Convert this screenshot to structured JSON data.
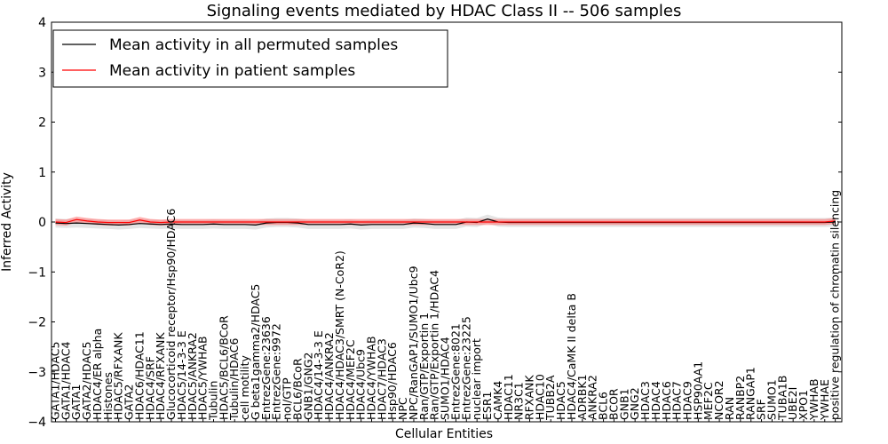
{
  "chart_data": {
    "type": "line",
    "title": "Signaling events mediated by HDAC Class II -- 506 samples",
    "xlabel": "Cellular Entities",
    "ylabel": "Inferred Activity",
    "ylim": [
      -4,
      4
    ],
    "yticks": [
      -4,
      -3,
      -2,
      -1,
      0,
      1,
      2,
      3,
      4
    ],
    "ytick_labels": [
      "−4",
      "−3",
      "−2",
      "−1",
      "0",
      "1",
      "2",
      "3",
      "4"
    ],
    "legend": {
      "position": "top-left",
      "entries": [
        {
          "label": "Mean activity in all permuted samples",
          "color": "#000000"
        },
        {
          "label": "Mean activity in patient samples",
          "color": "#ff0000"
        }
      ]
    },
    "categories": [
      "GATA1/HDAC5",
      "GATA1/HDAC4",
      "GATA1",
      "GATA2/HDAC5",
      "HDAC4/ER alpha",
      "Histones",
      "HDAC5/RFXANK",
      "GATA2",
      "HDAC6/HDAC11",
      "HDAC4/SRF",
      "HDAC4/RFXANK",
      "Glucocorticoid receptor/Hsp90/HDAC6",
      "HDAC5/14-3-3 E",
      "HDAC5/ANKRA2",
      "HDAC5/YWHAB",
      "Tubulin",
      "HDAC5/BCL6/BCoR",
      "Tubulin/HDAC6",
      "cell motility",
      "G beta1gamma2/HDAC5",
      "EntrezGene:23636",
      "EntrezGene:9972",
      "nol/GTP",
      "BCL6/BCoR",
      "GNB1/GNG2",
      "HDAC4/14-3-3 E",
      "HDAC4/ANKRA2",
      "HDAC4/HDAC3/SMRT (N-CoR2)",
      "HDAC4/MEF2C",
      "HDAC4/Ubc9",
      "HDAC4/YWHAB",
      "HDAC7/HDAC3",
      "Hsp90/HDAC6",
      "NPC",
      "NPC/RanGAP1/SUMO1/Ubc9",
      "Ran/GTP/Exportin 1",
      "Ran/GTP/Exportin 1/HDAC4",
      "SUMO1/HDAC4",
      "EntrezGene:8021",
      "EntrezGene:23225",
      "nuclear import",
      "ESR1",
      "CAMK4",
      "HDAC11",
      "NR3C1",
      "RFXANK",
      "HDAC10",
      "TUBB2A",
      "HDAC5",
      "HDAC4/CaMK II delta B",
      "ADRBK1",
      "ANKRA2",
      "BCL6",
      "BCOR",
      "GNB1",
      "GNG2",
      "HDAC3",
      "HDAC4",
      "HDAC6",
      "HDAC7",
      "HDAC9",
      "HSP90AA1",
      "MEF2C",
      "NCOR2",
      "RAN",
      "RANBP2",
      "RANGAP1",
      "SRF",
      "SUMO1",
      "TUBA1B",
      "UBE2I",
      "XPO1",
      "YWHAB",
      "YWHAE",
      "positive regulation of chromatin silencing"
    ],
    "series": [
      {
        "name": "Mean activity in all permuted samples",
        "color": "#000000",
        "values": [
          -0.02,
          -0.03,
          -0.02,
          -0.03,
          -0.04,
          -0.05,
          -0.06,
          -0.05,
          -0.03,
          -0.04,
          -0.05,
          -0.04,
          -0.05,
          -0.05,
          -0.05,
          -0.04,
          -0.05,
          -0.05,
          -0.05,
          -0.06,
          -0.02,
          -0.01,
          -0.01,
          -0.02,
          -0.05,
          -0.05,
          -0.05,
          -0.05,
          -0.04,
          -0.06,
          -0.05,
          -0.05,
          -0.05,
          -0.05,
          -0.02,
          -0.03,
          -0.05,
          -0.05,
          -0.05,
          0.0,
          -0.01,
          0.06,
          0.0,
          -0.01,
          -0.01,
          -0.01,
          -0.01,
          -0.01,
          -0.01,
          -0.01,
          -0.01,
          -0.01,
          -0.01,
          -0.01,
          -0.01,
          -0.01,
          -0.01,
          -0.01,
          -0.01,
          -0.01,
          -0.01,
          -0.01,
          -0.01,
          -0.01,
          -0.01,
          -0.01,
          -0.01,
          -0.01,
          -0.01,
          -0.01,
          -0.01,
          -0.01,
          -0.01,
          -0.01,
          0.0
        ],
        "band": 0.09
      },
      {
        "name": "Mean activity in patient samples",
        "color": "#ff0000",
        "values": [
          0.0,
          -0.01,
          0.05,
          0.02,
          0.0,
          -0.01,
          -0.01,
          -0.01,
          0.04,
          0.0,
          -0.01,
          0.0,
          0.0,
          0.0,
          0.0,
          0.0,
          0.0,
          0.0,
          0.0,
          0.0,
          0.0,
          0.0,
          0.0,
          0.0,
          0.0,
          0.0,
          0.0,
          0.0,
          0.0,
          0.0,
          0.0,
          0.0,
          0.0,
          0.0,
          0.0,
          0.0,
          0.0,
          0.0,
          0.0,
          0.0,
          0.0,
          0.0,
          0.0,
          0.0,
          0.0,
          0.0,
          0.0,
          0.0,
          0.0,
          0.0,
          0.0,
          0.0,
          0.0,
          0.0,
          0.0,
          0.0,
          0.0,
          0.0,
          0.0,
          0.0,
          0.0,
          0.0,
          0.0,
          0.0,
          0.0,
          0.0,
          0.0,
          0.0,
          0.0,
          0.0,
          0.0,
          0.0,
          0.0,
          0.0,
          0.02
        ],
        "band": 0.06
      }
    ]
  }
}
